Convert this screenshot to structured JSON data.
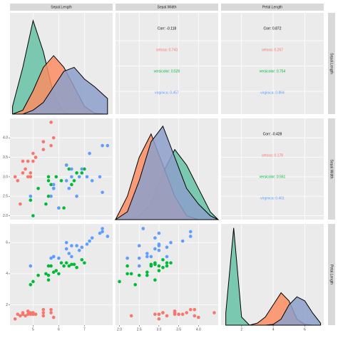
{
  "chart_data": {
    "type": "pairs",
    "variables": [
      "Sepal.Length",
      "Sepal.Width",
      "Petal.Length"
    ],
    "lims": [
      [
        4.1,
        8.1
      ],
      [
        1.9,
        4.5
      ],
      [
        0.7,
        7.2
      ]
    ],
    "ticks": [
      [
        5,
        6,
        7
      ],
      [
        {
          "value": 2,
          "label": "2.0"
        },
        {
          "value": 2.5,
          "label": "2.5"
        },
        {
          "value": 3,
          "label": "3.0"
        },
        {
          "value": 3.5,
          "label": "3.5"
        },
        {
          "value": 4,
          "label": "4.0"
        }
      ],
      [
        2,
        4,
        6
      ]
    ],
    "grid": true,
    "density_x": [
      [
        4.2,
        4.6,
        5.0,
        5.4,
        5.8,
        6.2,
        6.6,
        7.0,
        7.4,
        7.9
      ],
      [
        1.9,
        2.2,
        2.5,
        2.8,
        3.1,
        3.4,
        3.7,
        4.0,
        4.3,
        4.5
      ],
      [
        1,
        1.5,
        2,
        2.5,
        3,
        3.5,
        4,
        4.5,
        5,
        5.5,
        6,
        6.5,
        7
      ]
    ],
    "density_ylim": [
      [
        0,
        1.3
      ],
      [
        0,
        1.3
      ],
      [
        0,
        2.5
      ]
    ],
    "series": [
      {
        "name": "setosa",
        "color": "#F8766D",
        "density_color": "#66C2A5",
        "values": [
          [
            5.1,
            4.9,
            4.7,
            4.6,
            5.0,
            5.4,
            4.6,
            5.0,
            4.4,
            4.9,
            5.4,
            4.8,
            4.8,
            4.3,
            5.8,
            5.7,
            5.4,
            5.1,
            5.7,
            4.5
          ],
          [
            3.5,
            3.0,
            3.2,
            3.1,
            3.6,
            3.9,
            3.4,
            3.4,
            2.9,
            3.1,
            3.7,
            3.4,
            3.0,
            3.0,
            4.0,
            4.4,
            3.9,
            3.5,
            3.8,
            2.3
          ],
          [
            1.4,
            1.4,
            1.3,
            1.5,
            1.4,
            1.7,
            1.4,
            1.5,
            1.4,
            1.5,
            1.5,
            1.6,
            1.4,
            1.1,
            1.2,
            1.5,
            1.3,
            1.4,
            1.7,
            1.3
          ]
        ],
        "density": [
          [
            0.1,
            0.6,
            1.2,
            0.8,
            0.25,
            0.02,
            0,
            0,
            0,
            0
          ],
          [
            0,
            0,
            0.05,
            0.2,
            0.6,
            0.9,
            0.7,
            0.4,
            0.1,
            0
          ],
          [
            0.3,
            2.4,
            0.2,
            0,
            0,
            0,
            0,
            0,
            0,
            0,
            0,
            0,
            0
          ]
        ]
      },
      {
        "name": "versicolor",
        "color": "#00BA38",
        "density_color": "#FC8D62",
        "values": [
          [
            7.0,
            6.4,
            6.9,
            5.5,
            6.5,
            5.7,
            6.3,
            4.9,
            6.6,
            5.2,
            5.0,
            5.9,
            6.0,
            6.1,
            5.6,
            6.7,
            5.6,
            5.8,
            6.2,
            5.6
          ],
          [
            3.2,
            3.2,
            3.1,
            2.3,
            2.8,
            2.8,
            3.3,
            2.4,
            2.9,
            2.7,
            2.0,
            3.0,
            2.2,
            2.9,
            2.9,
            3.1,
            3.0,
            2.7,
            2.2,
            2.5
          ],
          [
            4.7,
            4.5,
            4.9,
            4.0,
            4.6,
            4.5,
            4.7,
            3.3,
            4.6,
            3.9,
            3.5,
            4.2,
            4.0,
            4.7,
            3.6,
            4.4,
            4.5,
            4.1,
            4.5,
            3.9
          ]
        ],
        "density": [
          [
            0,
            0.05,
            0.3,
            0.6,
            0.75,
            0.6,
            0.35,
            0.1,
            0.01,
            0
          ],
          [
            0,
            0.3,
            0.8,
            1.1,
            0.7,
            0.3,
            0.05,
            0,
            0,
            0
          ],
          [
            0,
            0,
            0,
            0,
            0.05,
            0.2,
            0.5,
            0.8,
            0.6,
            0.15,
            0.02,
            0,
            0
          ]
        ]
      },
      {
        "name": "virginica",
        "color": "#619CFF",
        "density_color": "#8DA0CB",
        "values": [
          [
            6.3,
            5.8,
            7.1,
            6.3,
            6.5,
            7.6,
            4.9,
            7.3,
            6.7,
            7.2,
            6.5,
            6.4,
            6.8,
            5.7,
            5.8,
            7.7,
            7.7,
            6.0,
            6.9,
            7.9
          ],
          [
            3.3,
            2.7,
            3.0,
            2.9,
            3.0,
            3.0,
            2.5,
            2.9,
            2.5,
            3.6,
            3.2,
            2.7,
            3.0,
            2.5,
            2.8,
            3.8,
            2.6,
            2.2,
            3.2,
            3.8
          ],
          [
            6.0,
            5.1,
            5.9,
            5.6,
            5.8,
            6.6,
            4.5,
            6.3,
            5.8,
            6.1,
            5.1,
            5.3,
            5.5,
            5.0,
            5.1,
            6.7,
            6.9,
            5.0,
            5.7,
            6.4
          ]
        ],
        "density": [
          [
            0,
            0,
            0.05,
            0.15,
            0.35,
            0.55,
            0.6,
            0.45,
            0.35,
            0.2
          ],
          [
            0,
            0.1,
            0.5,
            1.0,
            1.2,
            0.8,
            0.4,
            0.2,
            0.05,
            0
          ],
          [
            0,
            0,
            0,
            0,
            0,
            0,
            0.02,
            0.15,
            0.5,
            0.7,
            0.6,
            0.3,
            0.05
          ]
        ]
      }
    ],
    "correlations": [
      {
        "label": "Corr: -0.118",
        "groups": [
          "setosa: 0.743",
          "versicolor: 0.526",
          "virginica: 0.457"
        ]
      },
      {
        "label": "Corr: 0.872",
        "groups": [
          "setosa: 0.267",
          "versicolor: 0.754",
          "virginica: 0.864"
        ]
      },
      {
        "label": "Corr: -0.428",
        "groups": [
          "setosa: 0.178",
          "versicolor: 0.561",
          "virginica: 0.401"
        ]
      }
    ]
  }
}
